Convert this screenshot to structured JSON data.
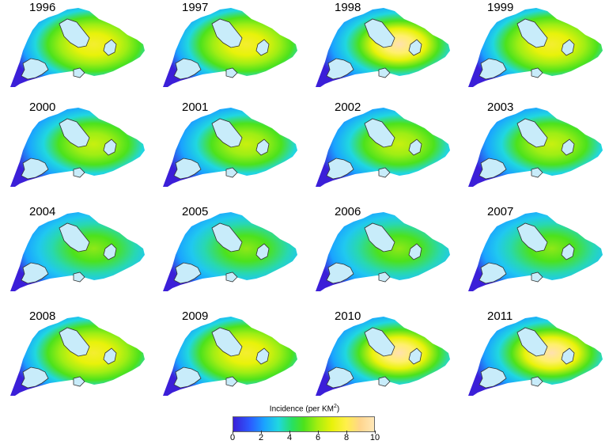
{
  "panels": [
    {
      "year": "1996",
      "intensity": 0.85
    },
    {
      "year": "1997",
      "intensity": 0.85
    },
    {
      "year": "1998",
      "intensity": 1.0
    },
    {
      "year": "1999",
      "intensity": 0.85
    },
    {
      "year": "2000",
      "intensity": 0.7
    },
    {
      "year": "2001",
      "intensity": 0.68
    },
    {
      "year": "2002",
      "intensity": 0.62
    },
    {
      "year": "2003",
      "intensity": 0.62
    },
    {
      "year": "2004",
      "intensity": 0.5
    },
    {
      "year": "2005",
      "intensity": 0.52
    },
    {
      "year": "2006",
      "intensity": 0.5
    },
    {
      "year": "2007",
      "intensity": 0.5
    },
    {
      "year": "2008",
      "intensity": 0.85
    },
    {
      "year": "2009",
      "intensity": 0.88
    },
    {
      "year": "2010",
      "intensity": 1.0
    },
    {
      "year": "2011",
      "intensity": 1.0
    }
  ],
  "legend": {
    "title": "Incidence  (per  KM",
    "title_sup": "2",
    "title_end": ")",
    "ticks": [
      "0",
      "2",
      "4",
      "6",
      "8",
      "10"
    ],
    "min": 0,
    "max": 10
  },
  "colors": {
    "low": "#3b1fd8",
    "mid_low": "#1aa3ff",
    "mid": "#4ce21c",
    "high": "#e8f20a",
    "peak": "#ffe0b0",
    "water": "#c8ecfa"
  }
}
